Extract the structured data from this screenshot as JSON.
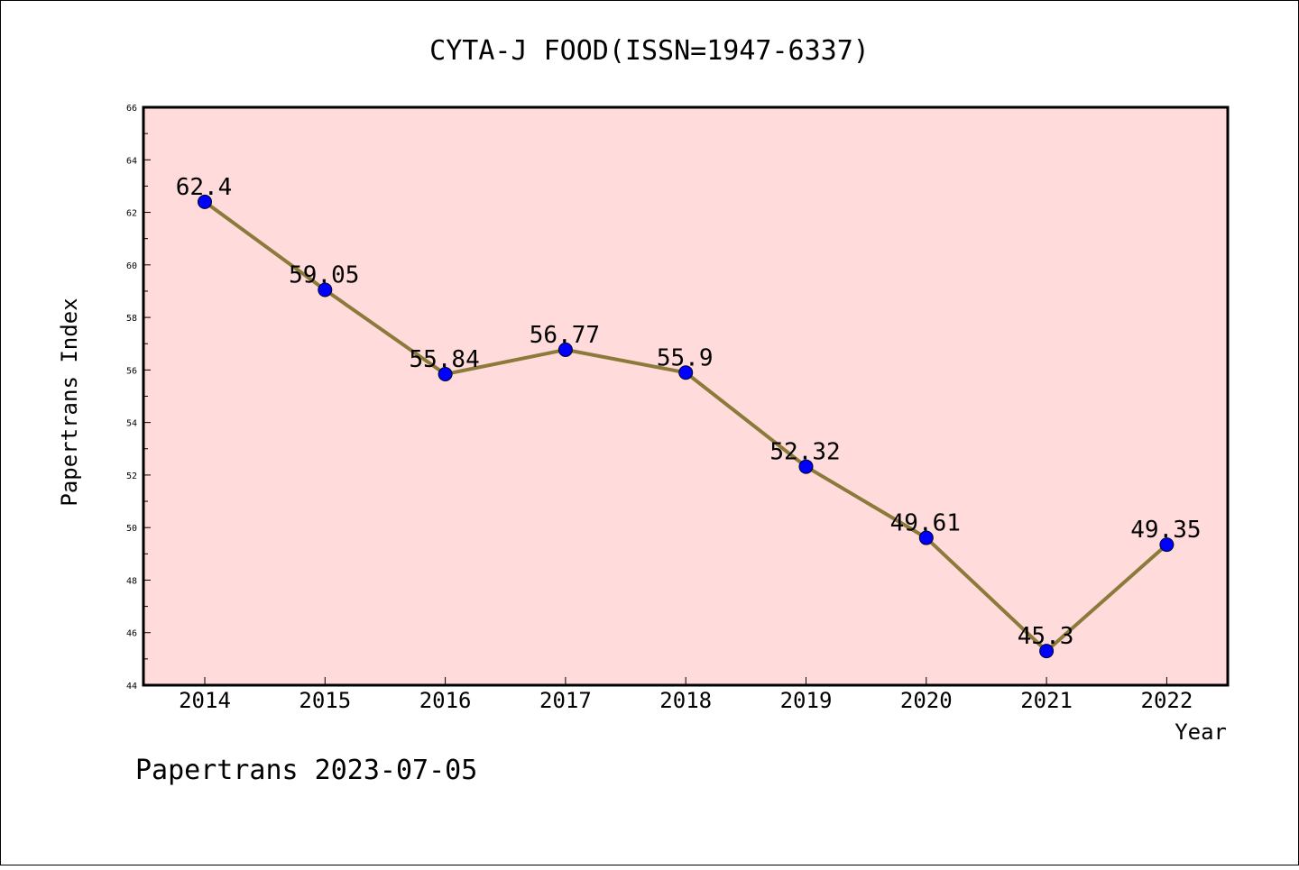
{
  "chart_data": {
    "type": "line",
    "title": "CYTA-J FOOD(ISSN=1947-6337)",
    "xlabel": "Year",
    "ylabel": "Papertrans Index",
    "x": [
      "2014",
      "2015",
      "2016",
      "2017",
      "2018",
      "2019",
      "2020",
      "2021",
      "2022"
    ],
    "values": [
      62.4,
      59.05,
      55.84,
      56.77,
      55.9,
      52.32,
      49.61,
      45.3,
      49.35
    ],
    "data_labels": [
      "62.4",
      "59.05",
      "55.84",
      "56.77",
      "55.9",
      "52.32",
      "49.61",
      "45.3",
      "49.35"
    ],
    "ylim": [
      44,
      66
    ],
    "yticks": [
      "44",
      "46",
      "48",
      "50",
      "52",
      "54",
      "56",
      "58",
      "60",
      "62",
      "64",
      "66"
    ],
    "grid": false,
    "legend": "none",
    "colors": {
      "plot_background": "#ffdcdb",
      "line": "#8b7a3a",
      "marker": "#0000ff",
      "frame": "#000000"
    }
  },
  "footer": {
    "text": "Papertrans 2023-07-05"
  }
}
